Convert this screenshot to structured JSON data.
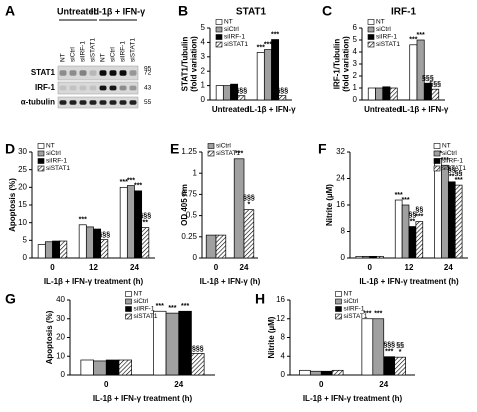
{
  "blot": {
    "label": "A",
    "groups": [
      "Untreated",
      "IL-1β + IFN-γ"
    ],
    "lanes": [
      "NT",
      "siCtrl",
      "siIRF-1",
      "siSTAT1",
      "NT",
      "siCtrl",
      "siIRF-1",
      "siSTAT1"
    ],
    "rows": [
      {
        "name": "STAT1",
        "mw": "95"
      },
      {
        "name": "IRF-1",
        "mw": "43"
      },
      {
        "name": "α-tubulin",
        "mw": "55"
      }
    ],
    "extra_mw": "72"
  },
  "chart_data": [
    {
      "type": "bar",
      "label": "B",
      "title": "STAT1",
      "ylabel": [
        "STAT1/Tubulin",
        "(fold variation)"
      ],
      "categories": [
        "Untreated",
        "IL-1β + IFN-γ"
      ],
      "ylim": [
        0,
        5
      ],
      "yticks": [
        0,
        1,
        2,
        3,
        4,
        5
      ],
      "legend": "upper left",
      "series": [
        {
          "name": "NT",
          "color": "#ffffff",
          "values": [
            1.0,
            3.3
          ],
          "annotations": [
            null,
            [
              "***"
            ]
          ]
        },
        {
          "name": "siCtrl",
          "color": "#a0a0a0",
          "values": [
            1.0,
            3.5
          ],
          "annotations": [
            null,
            [
              "***"
            ]
          ]
        },
        {
          "name": "siIRF-1",
          "color": "#000000",
          "values": [
            1.1,
            4.2
          ],
          "annotations": [
            null,
            [
              "***"
            ]
          ]
        },
        {
          "name": "siSTAT1",
          "color": "#ffffff",
          "hatch": true,
          "values": [
            0.3,
            0.3
          ],
          "annotations": [
            [
              "§§§"
            ],
            [
              "§§§"
            ]
          ]
        }
      ]
    },
    {
      "type": "bar",
      "label": "C",
      "title": "IRF-1",
      "ylabel": [
        "IRF-1/Tubulin",
        "(fold variation)"
      ],
      "categories": [
        "Untreated",
        "IL-1β + IFN-γ"
      ],
      "ylim": [
        0,
        6
      ],
      "yticks": [
        0,
        1,
        2,
        3,
        4,
        5,
        6
      ],
      "legend": "upper left",
      "series": [
        {
          "name": "NT",
          "color": "#ffffff",
          "values": [
            1.0,
            4.6
          ],
          "annotations": [
            null,
            [
              "***"
            ]
          ]
        },
        {
          "name": "siCtrl",
          "color": "#a0a0a0",
          "values": [
            1.0,
            5.0
          ],
          "annotations": [
            null,
            [
              "***"
            ]
          ]
        },
        {
          "name": "siIRF-1",
          "color": "#000000",
          "values": [
            1.1,
            1.4
          ],
          "annotations": [
            null,
            [
              "§§§"
            ]
          ]
        },
        {
          "name": "siSTAT1",
          "color": "#ffffff",
          "hatch": true,
          "values": [
            1.0,
            0.9
          ],
          "annotations": [
            null,
            [
              "§§§"
            ]
          ]
        }
      ]
    },
    {
      "type": "bar",
      "label": "D",
      "ylabel": [
        "Apoptosis (%)"
      ],
      "xlabel": "IL-1β + IFN-γ treatment (h)",
      "categories": [
        "0",
        "12",
        "24"
      ],
      "ylim": [
        0,
        30
      ],
      "yticks": [
        0,
        5,
        10,
        15,
        20,
        25,
        30
      ],
      "legend": "upper left",
      "series": [
        {
          "name": "NT",
          "color": "#ffffff",
          "values": [
            3.8,
            9.4,
            20
          ],
          "annotations": [
            null,
            [
              "***"
            ],
            [
              "***"
            ]
          ]
        },
        {
          "name": "siCtrl",
          "color": "#a0a0a0",
          "values": [
            4.6,
            8.8,
            20.5
          ],
          "annotations": [
            null,
            null,
            [
              "***"
            ]
          ]
        },
        {
          "name": "siIRF-1",
          "color": "#000000",
          "values": [
            4.8,
            8.2,
            19
          ],
          "annotations": [
            null,
            null,
            [
              "***"
            ]
          ]
        },
        {
          "name": "siSTAT1",
          "color": "#ffffff",
          "hatch": true,
          "values": [
            4.8,
            5.2,
            8.6
          ],
          "annotations": [
            null,
            [
              "§§§"
            ],
            [
              "§§§",
              "**"
            ]
          ]
        }
      ]
    },
    {
      "type": "bar",
      "label": "E",
      "ylabel": [
        "OD 405 nm"
      ],
      "xlabel": "IL-1β + IFN-γ (h)",
      "categories": [
        "0",
        "24"
      ],
      "ylim": [
        0,
        1.25
      ],
      "yticks": [
        0,
        0.25,
        0.5,
        0.75,
        1,
        1.25
      ],
      "legend": "upper left",
      "series": [
        {
          "name": "siCtrl",
          "color": "#a0a0a0",
          "values": [
            0.27,
            1.17
          ],
          "annotations": [
            null,
            [
              "***"
            ]
          ]
        },
        {
          "name": "siSTAT1",
          "color": "#ffffff",
          "hatch": true,
          "values": [
            0.27,
            0.57
          ],
          "annotations": [
            null,
            [
              "§§§",
              "*"
            ]
          ]
        }
      ]
    },
    {
      "type": "bar",
      "label": "F",
      "ylabel": [
        "Nitrite (µM)"
      ],
      "xlabel": "IL-1β + IFN-γ treatment (h)",
      "categories": [
        "0",
        "12",
        "24"
      ],
      "ylim": [
        0,
        32
      ],
      "yticks": [
        0,
        8,
        16,
        24,
        32
      ],
      "legend": "upper right",
      "series": [
        {
          "name": "NT",
          "color": "#ffffff",
          "values": [
            0.5,
            17.5,
            30
          ],
          "annotations": [
            null,
            [
              "***"
            ],
            [
              "***"
            ]
          ]
        },
        {
          "name": "siCtrl",
          "color": "#a0a0a0",
          "values": [
            0.5,
            16,
            28
          ],
          "annotations": [
            null,
            [
              "***"
            ],
            [
              "***"
            ]
          ]
        },
        {
          "name": "siIRF-1",
          "color": "#000000",
          "values": [
            0.5,
            9.5,
            23
          ],
          "annotations": [
            null,
            [
              "§§",
              "**"
            ],
            [
              "§§",
              "**"
            ]
          ]
        },
        {
          "name": "siSTAT1",
          "color": "#ffffff",
          "hatch": true,
          "values": [
            0.5,
            11,
            22
          ],
          "annotations": [
            null,
            [
              "§§",
              "***"
            ],
            [
              "§§",
              "***"
            ]
          ]
        }
      ]
    },
    {
      "type": "bar",
      "label": "G",
      "ylabel": [
        "Apoptosis (%)"
      ],
      "xlabel": "IL-1β + IFN-γ treatment (h)",
      "categories": [
        "0",
        "24"
      ],
      "ylim": [
        0,
        40
      ],
      "yticks": [
        0,
        10,
        20,
        30,
        40
      ],
      "legend": "upper center",
      "series": [
        {
          "name": "NT",
          "color": "#ffffff",
          "values": [
            8,
            34
          ],
          "annotations": [
            null,
            [
              "***"
            ]
          ]
        },
        {
          "name": "siCtrl",
          "color": "#a0a0a0",
          "values": [
            7.5,
            33
          ],
          "annotations": [
            null,
            [
              "***"
            ]
          ]
        },
        {
          "name": "siIRF-1",
          "color": "#000000",
          "values": [
            8,
            34
          ],
          "annotations": [
            null,
            [
              "***"
            ]
          ]
        },
        {
          "name": "siSTAT1",
          "color": "#ffffff",
          "hatch": true,
          "values": [
            8,
            11.5
          ],
          "annotations": [
            null,
            [
              "§§§"
            ]
          ]
        }
      ]
    },
    {
      "type": "bar",
      "label": "H",
      "ylabel": [
        "Nitrite (µM)"
      ],
      "xlabel": "IL-1β + IFN-γ treatment (h)",
      "categories": [
        "0",
        "24"
      ],
      "ylim": [
        0,
        16
      ],
      "yticks": [
        0,
        4,
        8,
        12,
        16
      ],
      "legend": "upper center",
      "series": [
        {
          "name": "NT",
          "color": "#ffffff",
          "values": [
            1.0,
            12
          ],
          "annotations": [
            null,
            [
              "***"
            ]
          ]
        },
        {
          "name": "siCtrl",
          "color": "#a0a0a0",
          "values": [
            0.8,
            12
          ],
          "annotations": [
            null,
            [
              "***"
            ]
          ]
        },
        {
          "name": "siIRF-1",
          "color": "#000000",
          "values": [
            0.8,
            3.9
          ],
          "annotations": [
            null,
            [
              "§§§",
              "***"
            ]
          ]
        },
        {
          "name": "siSTAT1",
          "color": "#ffffff",
          "hatch": true,
          "values": [
            1.0,
            3.8
          ],
          "annotations": [
            null,
            [
              "§§",
              "*"
            ]
          ]
        }
      ]
    }
  ]
}
